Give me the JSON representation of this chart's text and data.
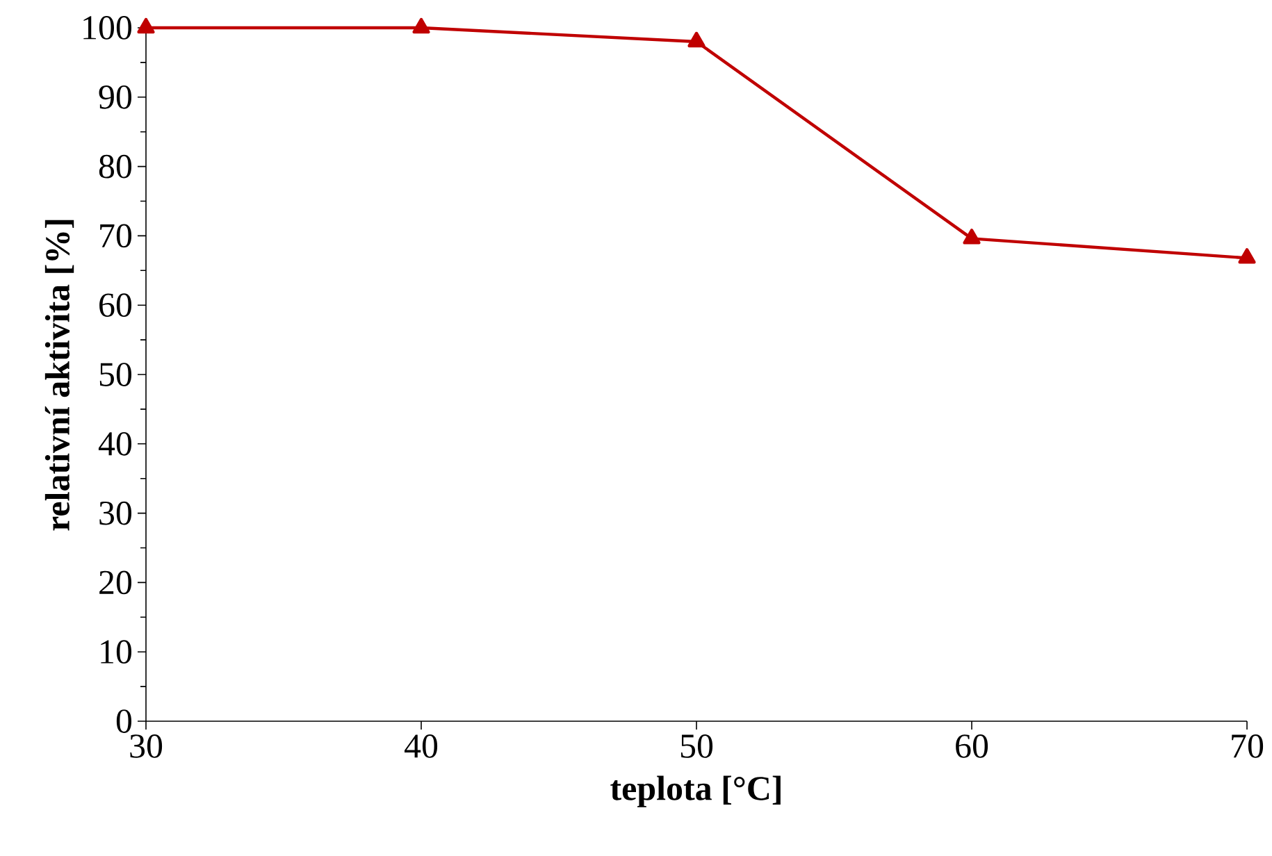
{
  "chart_data": {
    "type": "line",
    "xlabel": "teplota [°C]",
    "ylabel": "relativní aktivita [%]",
    "x": [
      30,
      40,
      50,
      60,
      70
    ],
    "series": [
      {
        "color": "#c00000",
        "values": [
          100,
          100,
          98,
          69.6,
          66.8
        ]
      }
    ],
    "xlim": [
      30,
      70
    ],
    "xticks": [
      30,
      40,
      50,
      60,
      70
    ],
    "ylim": [
      0,
      100
    ],
    "yticks": [
      0,
      10,
      20,
      30,
      40,
      50,
      60,
      70,
      80,
      90,
      100
    ],
    "marker": "triangle",
    "line_style": "solid"
  }
}
